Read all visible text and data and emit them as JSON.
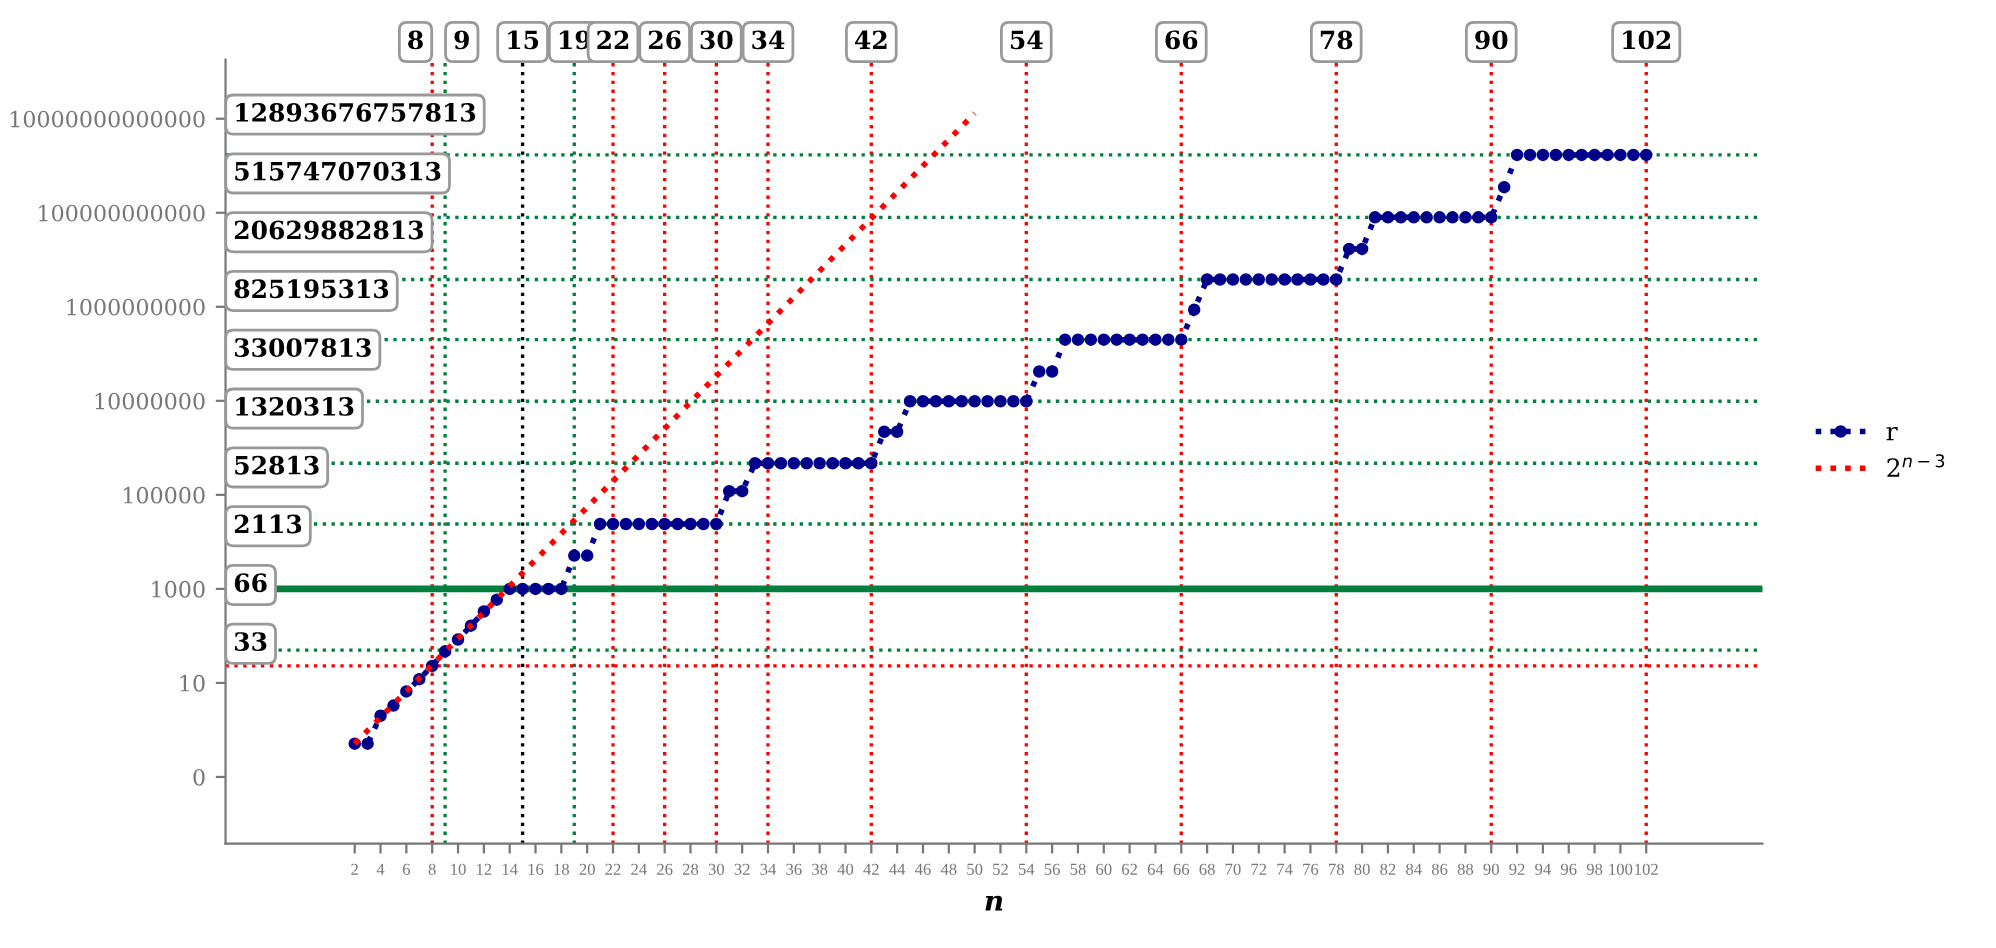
{
  "chart_data": {
    "type": "line",
    "xlabel": "n",
    "log": "y",
    "legend": "right",
    "grid": false,
    "xlim": [
      -8,
      111
    ],
    "ylim": [
      0.0038,
      180000000000000.0
    ],
    "xticks": [
      2,
      4,
      6,
      8,
      10,
      12,
      14,
      16,
      18,
      20,
      22,
      24,
      26,
      28,
      30,
      32,
      34,
      36,
      38,
      40,
      42,
      44,
      46,
      48,
      50,
      52,
      54,
      56,
      58,
      60,
      62,
      64,
      66,
      68,
      70,
      72,
      74,
      76,
      78,
      80,
      82,
      84,
      86,
      88,
      90,
      92,
      94,
      96,
      98,
      100,
      102
    ],
    "yticks": [
      {
        "value": 0.1,
        "label": "0"
      },
      10,
      1000,
      100000,
      10000000,
      1000000000,
      100000000000,
      10000000000000
    ],
    "series": [
      {
        "name": "r",
        "color": "#00008b",
        "marker": "circle",
        "line_style": "dotted",
        "x": [
          2,
          3,
          4,
          5,
          6,
          7,
          8,
          9,
          10,
          11,
          12,
          13,
          14,
          15,
          16,
          17,
          18,
          19,
          20,
          21,
          22,
          23,
          24,
          25,
          26,
          27,
          28,
          29,
          30,
          31,
          32,
          33,
          34,
          35,
          36,
          37,
          38,
          39,
          40,
          41,
          42,
          43,
          44,
          45,
          46,
          47,
          48,
          49,
          50,
          51,
          52,
          53,
          54,
          55,
          56,
          57,
          58,
          59,
          60,
          61,
          62,
          63,
          64,
          65,
          66,
          67,
          68,
          69,
          70,
          71,
          72,
          73,
          74,
          75,
          76,
          77,
          78,
          79,
          80,
          81,
          82,
          83,
          84,
          85,
          86,
          87,
          88,
          89,
          90,
          91,
          92,
          93,
          94,
          95,
          96,
          97,
          98,
          99,
          100,
          101,
          102
        ],
        "values": [
          0.51,
          0.51,
          2.0,
          3.3,
          6.6,
          12,
          23,
          47,
          84,
          165,
          330,
          590,
          1000,
          1000,
          1000,
          1000,
          1000,
          5100,
          5100,
          24000,
          24000,
          24000,
          24000,
          24000,
          24000,
          24000,
          24000,
          24000,
          24000,
          120000,
          120000,
          470000,
          470000,
          470000,
          470000,
          470000,
          470000,
          470000,
          470000,
          470000,
          470000,
          2200000,
          2200000,
          9800000,
          9800000,
          9800000,
          9800000,
          9800000,
          9800000,
          9800000,
          9800000,
          9800000,
          9800000,
          42000000,
          42000000,
          200000000,
          200000000,
          200000000,
          200000000,
          200000000,
          200000000,
          200000000,
          200000000,
          200000000,
          200000000,
          870000000,
          3800000000,
          3800000000,
          3800000000,
          3800000000,
          3800000000,
          3800000000,
          3800000000,
          3800000000,
          3800000000,
          3800000000,
          3800000000,
          17000000000,
          17000000000,
          80000000000,
          80000000000,
          80000000000,
          80000000000,
          80000000000,
          80000000000,
          80000000000,
          80000000000,
          80000000000,
          80000000000,
          350000000000,
          1700000000000,
          1700000000000,
          1700000000000,
          1700000000000,
          1700000000000,
          1700000000000,
          1700000000000,
          1700000000000,
          1700000000000,
          1700000000000,
          1700000000000
        ]
      },
      {
        "name": "2$^{n−3}$",
        "color": "#ff0000",
        "marker": "none",
        "line_style": "dotted",
        "x": [
          2,
          50
        ],
        "values": [
          0.51,
          13000000000000
        ]
      }
    ],
    "ref_lines": [
      {
        "axis": "x",
        "value": 8,
        "label": "8",
        "color": "#ff0000",
        "line_style": "dotted"
      },
      {
        "axis": "x",
        "value": 9,
        "label": "9",
        "color": "#007f3f",
        "line_style": "dotted"
      },
      {
        "axis": "x",
        "value": 15,
        "label": "15",
        "color": "#000000",
        "line_style": "dotted"
      },
      {
        "axis": "x",
        "value": 19,
        "label": "19",
        "color": "#007f3f",
        "line_style": "dotted"
      },
      {
        "axis": "x",
        "value": 22,
        "label": "22",
        "color": "#ff0000",
        "line_style": "dotted"
      },
      {
        "axis": "x",
        "value": 26,
        "label": "26",
        "color": "#ff0000",
        "line_style": "dotted"
      },
      {
        "axis": "x",
        "value": 30,
        "label": "30",
        "color": "#ff0000",
        "line_style": "dotted"
      },
      {
        "axis": "x",
        "value": 34,
        "label": "34",
        "color": "#ff0000",
        "line_style": "dotted"
      },
      {
        "axis": "x",
        "value": 42,
        "label": "42",
        "color": "#ff0000",
        "line_style": "dotted"
      },
      {
        "axis": "x",
        "value": 54,
        "label": "54",
        "color": "#ff0000",
        "line_style": "dotted"
      },
      {
        "axis": "x",
        "value": 66,
        "label": "66",
        "color": "#ff0000",
        "line_style": "dotted"
      },
      {
        "axis": "x",
        "value": 78,
        "label": "78",
        "color": "#ff0000",
        "line_style": "dotted"
      },
      {
        "axis": "x",
        "value": 90,
        "label": "90",
        "color": "#ff0000",
        "line_style": "dotted"
      },
      {
        "axis": "x",
        "value": 102,
        "label": "102",
        "color": "#ff0000",
        "line_style": "dotted"
      },
      {
        "axis": "y",
        "value": 1700000000000,
        "color": "#007f3f",
        "line_style": "dotted"
      },
      {
        "axis": "y",
        "value": 80000000000,
        "color": "#007f3f",
        "line_style": "dotted"
      },
      {
        "axis": "y",
        "value": 3800000000,
        "color": "#007f3f",
        "line_style": "dotted"
      },
      {
        "axis": "y",
        "value": 200000000,
        "color": "#007f3f",
        "line_style": "dotted"
      },
      {
        "axis": "y",
        "value": 9800000,
        "color": "#007f3f",
        "line_style": "dotted"
      },
      {
        "axis": "y",
        "value": 470000,
        "color": "#007f3f",
        "line_style": "dotted"
      },
      {
        "axis": "y",
        "value": 24000,
        "color": "#007f3f",
        "line_style": "dotted"
      },
      {
        "axis": "y",
        "value": 1000,
        "color": "#007f3f",
        "line_style": "solid"
      },
      {
        "axis": "y",
        "value": 50,
        "color": "#007f3f",
        "line_style": "dotted"
      },
      {
        "axis": "y",
        "value": 23,
        "color": "#ff0000",
        "line_style": "dotted"
      }
    ],
    "annotations": [
      "12893676757813",
      "515747070313",
      "20629882813",
      "825195313",
      "33007813",
      "1320313",
      "52813",
      "2113",
      "66",
      "33"
    ]
  }
}
